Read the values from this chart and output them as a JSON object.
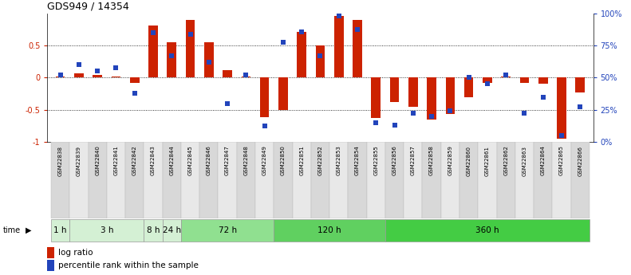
{
  "title": "GDS949 / 14354",
  "samples": [
    "GSM22838",
    "GSM22839",
    "GSM22840",
    "GSM22841",
    "GSM22842",
    "GSM22843",
    "GSM22844",
    "GSM22845",
    "GSM22846",
    "GSM22847",
    "GSM22848",
    "GSM22849",
    "GSM22850",
    "GSM22851",
    "GSM22852",
    "GSM22853",
    "GSM22854",
    "GSM22855",
    "GSM22856",
    "GSM22857",
    "GSM22858",
    "GSM22859",
    "GSM22860",
    "GSM22861",
    "GSM22862",
    "GSM22863",
    "GSM22864",
    "GSM22865",
    "GSM22866"
  ],
  "log_ratio": [
    0.02,
    0.07,
    0.04,
    0.02,
    -0.08,
    0.82,
    0.55,
    0.9,
    0.55,
    0.12,
    0.02,
    -0.62,
    -0.5,
    0.72,
    0.5,
    0.96,
    0.9,
    -0.63,
    -0.38,
    -0.45,
    -0.65,
    -0.57,
    -0.3,
    -0.08,
    0.02,
    -0.08,
    -0.1,
    -0.96,
    -0.23
  ],
  "percentile_rank": [
    0.52,
    0.6,
    0.55,
    0.58,
    0.38,
    0.85,
    0.67,
    0.84,
    0.62,
    0.3,
    0.52,
    0.12,
    0.78,
    0.86,
    0.67,
    0.98,
    0.88,
    0.15,
    0.13,
    0.22,
    0.2,
    0.24,
    0.5,
    0.45,
    0.52,
    0.22,
    0.35,
    0.05,
    0.27
  ],
  "time_groups": [
    {
      "label": "1 h",
      "start": 0,
      "end": 1,
      "color": "#d4f0d4"
    },
    {
      "label": "3 h",
      "start": 1,
      "end": 5,
      "color": "#d4f0d4"
    },
    {
      "label": "8 h",
      "start": 5,
      "end": 6,
      "color": "#d4f0d4"
    },
    {
      "label": "24 h",
      "start": 6,
      "end": 7,
      "color": "#d4f0d4"
    },
    {
      "label": "72 h",
      "start": 7,
      "end": 12,
      "color": "#90e090"
    },
    {
      "label": "120 h",
      "start": 12,
      "end": 18,
      "color": "#60d060"
    },
    {
      "label": "360 h",
      "start": 18,
      "end": 29,
      "color": "#44cc44"
    }
  ],
  "bar_color": "#cc2200",
  "dot_color": "#2244bb",
  "bg_color": "#ffffff",
  "ylim": [
    -1,
    1
  ],
  "yticks_left": [
    -1,
    -0.5,
    0,
    0.5
  ],
  "ytick_labels_left": [
    "-1",
    "-0.5",
    "0",
    "0.5"
  ],
  "yticks_right": [
    0.0,
    0.25,
    0.5,
    0.75,
    1.0
  ],
  "ytick_labels_right": [
    "0%",
    "25%",
    "50%",
    "75%",
    "100%"
  ],
  "bar_width": 0.5,
  "dot_size": 18
}
